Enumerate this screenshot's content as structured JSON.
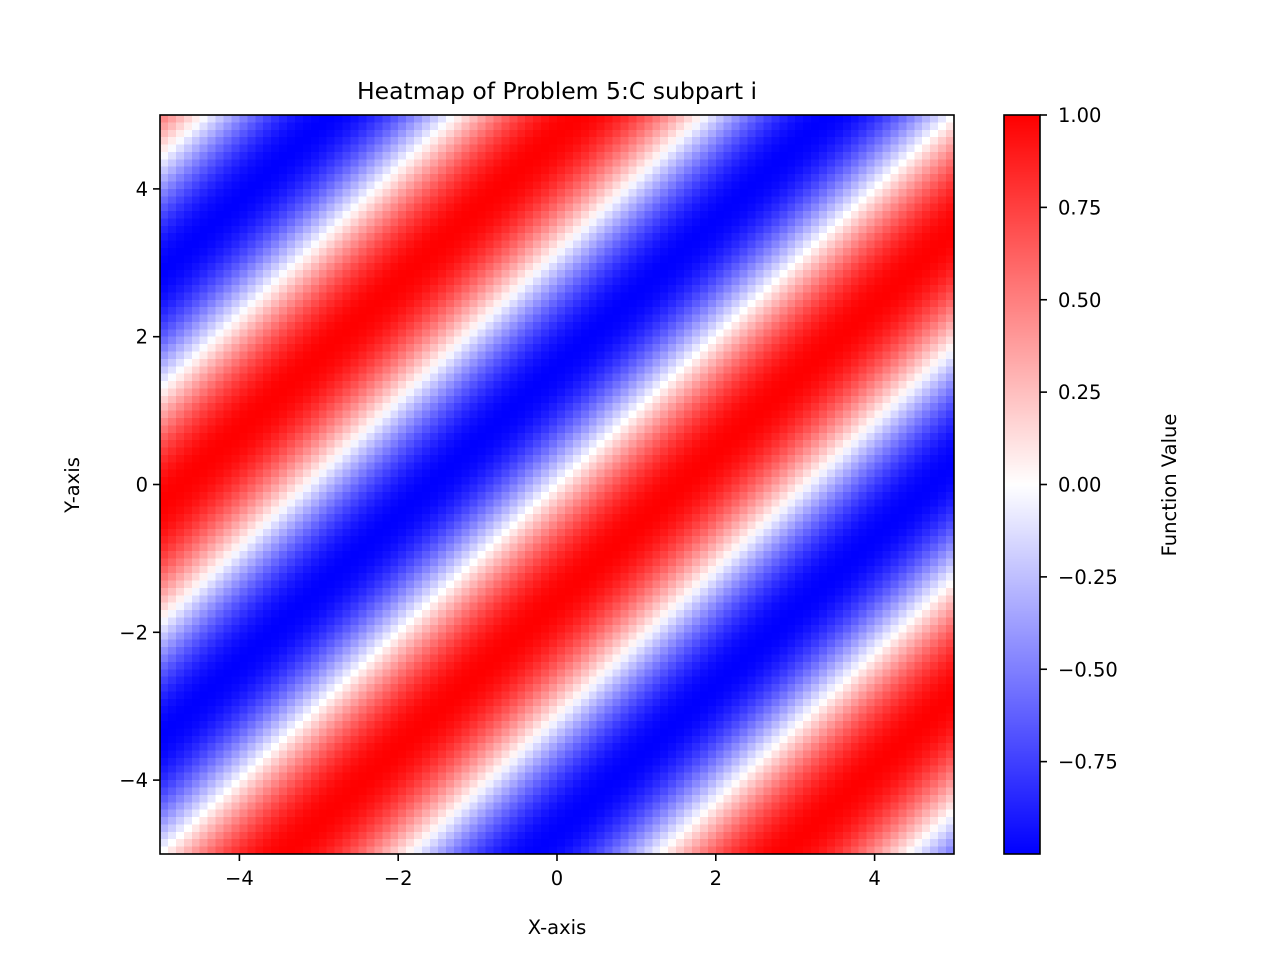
{
  "chart_data": {
    "type": "heatmap",
    "title": "Heatmap of Problem 5:C subpart i",
    "xlabel": "X-axis",
    "ylabel": "Y-axis",
    "xlim": [
      -5,
      5
    ],
    "ylim": [
      -5,
      5
    ],
    "x_ticks": [
      -4,
      -2,
      0,
      2,
      4
    ],
    "y_ticks": [
      -4,
      -2,
      0,
      2,
      4
    ],
    "x_tick_labels": [
      "−4",
      "−2",
      "0",
      "2",
      "4"
    ],
    "y_tick_labels": [
      "−4",
      "−2",
      "0",
      "2",
      "4"
    ],
    "grid": false,
    "colormap": "bwr",
    "colormap_colors": {
      "low": "#0000ff",
      "mid": "#ffffff",
      "high": "#ff0000"
    },
    "resolution": 100,
    "function": "sin(x - y)",
    "value_range": [
      -1.0,
      1.0
    ],
    "colorbar": {
      "label": "Function Value",
      "ticks": [
        1.0,
        0.75,
        0.5,
        0.25,
        0.0,
        -0.25,
        -0.5,
        -0.75
      ],
      "tick_labels": [
        "1.00",
        "0.75",
        "0.50",
        "0.25",
        "0.00",
        "−0.25",
        "−0.50",
        "−0.75"
      ]
    }
  }
}
